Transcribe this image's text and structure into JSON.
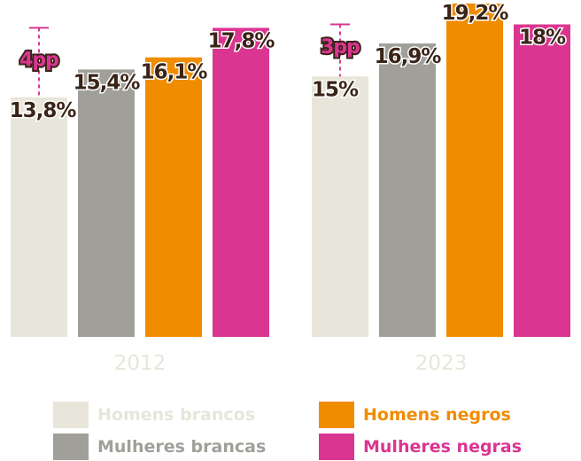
{
  "chart_data": {
    "type": "bar",
    "categories": [
      "2012",
      "2023"
    ],
    "series": [
      {
        "name": "Homens brancos",
        "color": "#e8e6da",
        "values": [
          13.8,
          15
        ],
        "labels": [
          "13,8%",
          "15%"
        ]
      },
      {
        "name": "Mulheres brancas",
        "color": "#a09f99",
        "values": [
          15.4,
          16.9
        ],
        "labels": [
          "15,4%",
          "16,9%"
        ]
      },
      {
        "name": "Homens negros",
        "color": "#f08c00",
        "values": [
          16.1,
          19.2
        ],
        "labels": [
          "16,1%",
          "19,2%"
        ]
      },
      {
        "name": "Mulheres negras",
        "color": "#db3592",
        "values": [
          17.8,
          18
        ],
        "labels": [
          "17,8%",
          "18%"
        ]
      }
    ],
    "annotations": [
      {
        "category": "2012",
        "text": "4pp",
        "from": 13.8,
        "to": 17.8
      },
      {
        "category": "2023",
        "text": "3pp",
        "from": 15,
        "to": 18
      }
    ],
    "ylim": [
      0,
      19.2
    ],
    "grid": false,
    "legend_position": "bottom",
    "title": "",
    "xlabel": "",
    "ylabel": ""
  },
  "legend": {
    "items": [
      {
        "label": "Homens brancos",
        "color": "#e8e6da"
      },
      {
        "label": "Homens negros",
        "color": "#f08c00"
      },
      {
        "label": "Mulheres brancas",
        "color": "#a09f99"
      },
      {
        "label": "Mulheres negras",
        "color": "#db3592"
      }
    ]
  },
  "colors": {
    "value_label": "#3a2418",
    "annotation": "#db3592",
    "year_label": "#e8e6da"
  }
}
